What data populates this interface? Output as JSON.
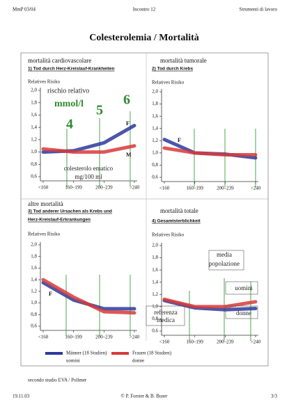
{
  "header": {
    "left": "MmP 03/04",
    "center": "Incontro 12",
    "right": "Strumenti di lavoro"
  },
  "title": "Colesterolemia / Mortalità",
  "chart_data": [
    {
      "type": "line",
      "caption": "mortalità cardiovascolare",
      "title": "1) Tod durch Herz-Kreislauf-Krankheiten",
      "y_label": "Relatives Risiko",
      "categories": [
        "<160",
        "160–199",
        "200–239",
        ">240"
      ],
      "ylim": [
        0.6,
        2.0
      ],
      "yticks": [
        {
          "value": 2.0,
          "label": "2,0"
        },
        {
          "value": 1.8,
          "label": "1,8"
        },
        {
          "value": 1.6,
          "label": "1,6"
        },
        {
          "value": 1.4,
          "label": "1,4"
        },
        {
          "value": 1.2,
          "label": "1,2"
        },
        {
          "value": 1.0,
          "label": "1,0"
        },
        {
          "value": 0.8,
          "label": "0,8"
        },
        {
          "value": 0.6,
          "label": "0,6"
        }
      ],
      "series": [
        {
          "color": "#2b3a9a",
          "values": [
            1.0,
            1.02,
            1.15,
            1.43
          ]
        },
        {
          "color": "#d8393a",
          "values": [
            1.05,
            1.0,
            1.0,
            1.1
          ]
        }
      ],
      "annotations": [
        "rischio relativo",
        "mmol/l",
        "4",
        "5",
        "6",
        "F",
        "M",
        "colesterolo ematico",
        "mg/100 ml"
      ]
    },
    {
      "type": "line",
      "caption": "mortalità tumorale",
      "title": "2) Tod durch Krebs",
      "y_label": "Relatives Risiko",
      "categories": [
        "<160",
        "160–199",
        "200–239",
        ">240"
      ],
      "ylim": [
        0.6,
        2.0
      ],
      "yticks": [
        {
          "value": 2.0,
          "label": "2,0"
        },
        {
          "value": 1.8,
          "label": "1,8"
        },
        {
          "value": 1.6,
          "label": "1,6"
        },
        {
          "value": 1.4,
          "label": "1,4"
        },
        {
          "value": 1.2,
          "label": "1,2"
        },
        {
          "value": 1.0,
          "label": "1,0"
        },
        {
          "value": 0.8,
          "label": "0,8"
        },
        {
          "value": 0.6,
          "label": "0,6"
        }
      ],
      "series": [
        {
          "color": "#2b3a9a",
          "values": [
            1.22,
            1.0,
            0.98,
            0.92
          ]
        },
        {
          "color": "#d8393a",
          "values": [
            1.08,
            1.0,
            0.97,
            0.97
          ]
        }
      ],
      "annotations": [
        "F"
      ]
    },
    {
      "type": "line",
      "caption": "altre mortalità",
      "title": "3) Tod anderer Ursachen als Krebs und",
      "subtitle": "Herz-Kreislauf-Erkrankungen",
      "y_label": "Relatives Risiko",
      "categories": [
        "<160",
        "160–199",
        "200–239",
        ">240"
      ],
      "ylim": [
        0.6,
        2.0
      ],
      "yticks": [
        {
          "value": 2.0,
          "label": "2,0"
        },
        {
          "value": 1.8,
          "label": "1,8"
        },
        {
          "value": 1.6,
          "label": "1,6"
        },
        {
          "value": 1.4,
          "label": "1,4"
        },
        {
          "value": 1.2,
          "label": "1,2"
        },
        {
          "value": 1.0,
          "label": "1,0"
        },
        {
          "value": 0.8,
          "label": "0,8"
        },
        {
          "value": 0.6,
          "label": "0,6"
        }
      ],
      "series": [
        {
          "color": "#2b3a9a",
          "values": [
            1.35,
            1.05,
            0.9,
            0.9
          ]
        },
        {
          "color": "#d8393a",
          "values": [
            1.4,
            1.1,
            0.85,
            0.83
          ]
        }
      ],
      "annotations": [
        "F"
      ]
    },
    {
      "type": "line",
      "caption": "mortalità totale",
      "title": "4) Gesamtsterblichkeit",
      "y_label": "Relatives Risiko",
      "categories": [
        "<160",
        "160–199",
        "200–239",
        ">240"
      ],
      "ylim": [
        0.6,
        2.0
      ],
      "yticks": [
        {
          "value": 2.0,
          "label": "2,0"
        },
        {
          "value": 1.8,
          "label": "1,8"
        },
        {
          "value": 1.6,
          "label": "1,6"
        },
        {
          "value": 1.4,
          "label": "1,4"
        },
        {
          "value": 1.2,
          "label": "1,2"
        },
        {
          "value": 1.0,
          "label": "1,0"
        },
        {
          "value": 0.8,
          "label": "0,8"
        },
        {
          "value": 0.6,
          "label": "0,6"
        }
      ],
      "series": [
        {
          "color": "#2b3a9a",
          "values": [
            1.1,
            0.98,
            0.95,
            0.97
          ]
        },
        {
          "color": "#d8393a",
          "values": [
            1.12,
            1.0,
            1.0,
            1.08
          ]
        }
      ],
      "annotations": [
        "media",
        "popolazione",
        "referenza",
        "medica",
        "uomini",
        "donne"
      ]
    }
  ],
  "legend": [
    {
      "name": "Männer (18 Studien)",
      "label": "uomini",
      "color": "#2b3a9a"
    },
    {
      "name": "Frauen (18 Studien)",
      "label": "donne",
      "color": "#d8393a"
    }
  ],
  "note": "secondo studio EVA / Pollmer",
  "footer": {
    "left": "19.11.03",
    "center": "© P. Forster & B. Buser",
    "right": "3/3"
  }
}
